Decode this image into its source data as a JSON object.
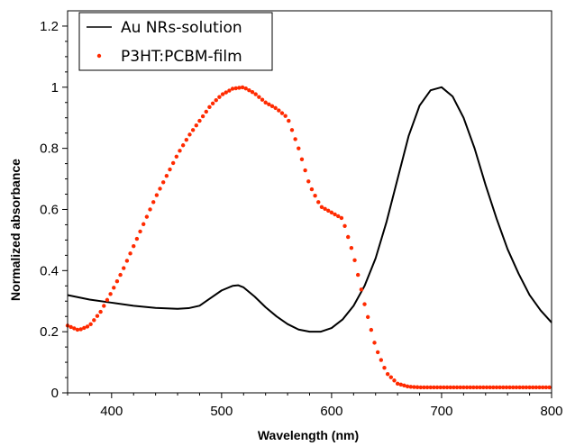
{
  "chart_data": {
    "type": "line",
    "title": "",
    "xlabel": "Wavelength (nm)",
    "ylabel": "Normalized absorbance",
    "xlim": [
      360,
      800
    ],
    "ylim": [
      0,
      1.25
    ],
    "x_ticks": [
      400,
      500,
      600,
      700,
      800
    ],
    "y_ticks": [
      0,
      0.2,
      0.4,
      0.6,
      0.8,
      1,
      1.2
    ],
    "x_tick_labels": [
      "400",
      "500",
      "600",
      "700",
      "800"
    ],
    "y_tick_labels": [
      "0",
      "0.2",
      "0.4",
      "0.6",
      "0.8",
      "1",
      "1.2"
    ],
    "grid": false,
    "legend_position": "top-left",
    "series": [
      {
        "name": "Au NRs-solution",
        "style": "line",
        "color": "#000000",
        "x": [
          360,
          380,
          400,
          420,
          440,
          460,
          470,
          480,
          490,
          500,
          510,
          515,
          520,
          530,
          540,
          550,
          560,
          570,
          580,
          590,
          600,
          610,
          620,
          630,
          640,
          650,
          660,
          670,
          680,
          690,
          700,
          710,
          720,
          730,
          740,
          750,
          760,
          770,
          780,
          790,
          800
        ],
        "y": [
          0.32,
          0.305,
          0.295,
          0.285,
          0.278,
          0.275,
          0.277,
          0.285,
          0.31,
          0.335,
          0.35,
          0.352,
          0.345,
          0.315,
          0.28,
          0.25,
          0.225,
          0.207,
          0.2,
          0.2,
          0.212,
          0.24,
          0.285,
          0.35,
          0.44,
          0.56,
          0.7,
          0.84,
          0.94,
          0.99,
          1.0,
          0.97,
          0.9,
          0.8,
          0.68,
          0.57,
          0.47,
          0.39,
          0.32,
          0.27,
          0.23
        ]
      },
      {
        "name": "P3HT:PCBM-film",
        "style": "dots",
        "color": "#ff2a00",
        "x": [
          360,
          370,
          380,
          390,
          400,
          410,
          420,
          430,
          440,
          450,
          460,
          470,
          480,
          490,
          500,
          510,
          520,
          530,
          540,
          550,
          560,
          570,
          580,
          590,
          600,
          610,
          620,
          630,
          640,
          650,
          660,
          670,
          680,
          690,
          700,
          720,
          740,
          760,
          780,
          800
        ],
        "y": [
          0.22,
          0.205,
          0.22,
          0.265,
          0.33,
          0.4,
          0.48,
          0.56,
          0.64,
          0.71,
          0.78,
          0.84,
          0.89,
          0.94,
          0.975,
          0.995,
          1.0,
          0.98,
          0.95,
          0.93,
          0.9,
          0.8,
          0.68,
          0.61,
          0.59,
          0.57,
          0.45,
          0.29,
          0.15,
          0.065,
          0.03,
          0.02,
          0.018,
          0.018,
          0.018,
          0.018,
          0.018,
          0.018,
          0.018,
          0.018
        ]
      }
    ]
  }
}
